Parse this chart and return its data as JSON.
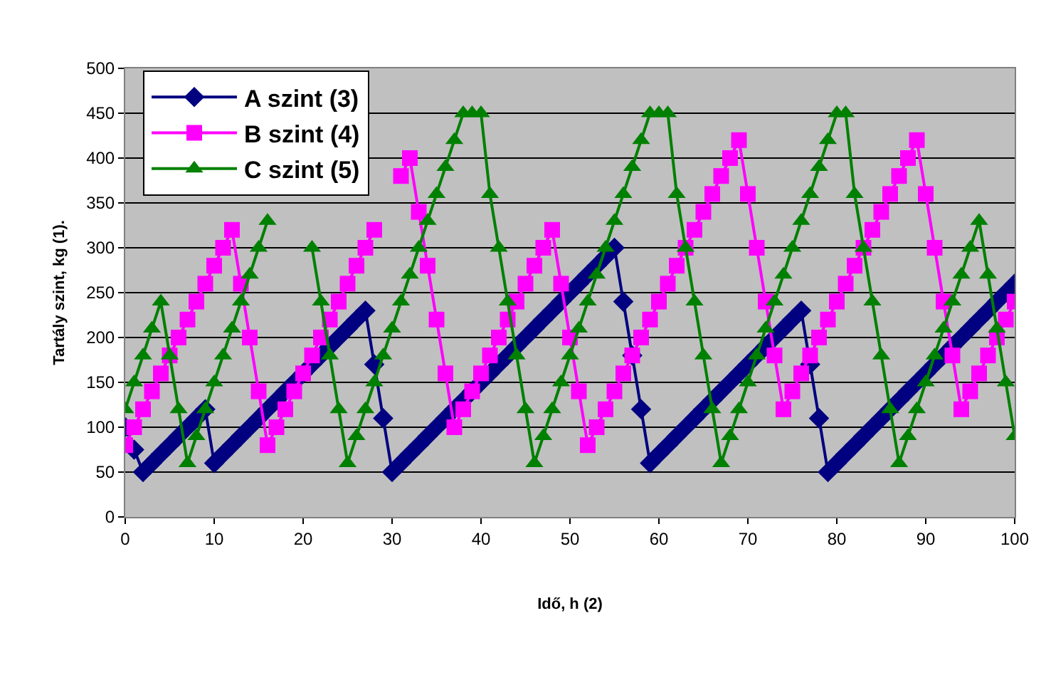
{
  "chart_data": {
    "type": "line",
    "xlabel": "Idő, h (2)",
    "ylabel": "Tartály szint, kg (1).",
    "x": [
      0,
      1,
      2,
      3,
      4,
      5,
      6,
      7,
      8,
      9,
      10,
      11,
      12,
      13,
      14,
      15,
      16,
      17,
      18,
      19,
      20,
      21,
      22,
      23,
      24,
      25,
      26,
      27,
      28,
      29,
      30,
      31,
      32,
      33,
      34,
      35,
      36,
      37,
      38,
      39,
      40,
      41,
      42,
      43,
      44,
      45,
      46,
      47,
      48,
      49,
      50,
      51,
      52,
      53,
      54,
      55,
      56,
      57,
      58,
      59,
      60,
      61,
      62,
      63,
      64,
      65,
      66,
      67,
      68,
      69,
      70,
      71,
      72,
      73,
      74,
      75,
      76,
      77,
      78,
      79,
      80,
      81,
      82,
      83,
      84,
      85,
      86,
      87,
      88,
      89,
      90,
      91,
      92,
      93,
      94,
      95,
      96,
      97,
      98,
      99,
      100
    ],
    "series": [
      {
        "name": "A szint (3)",
        "color": "#000080",
        "marker": "diamond",
        "values": [
          100,
          75,
          50,
          60,
          70,
          80,
          90,
          100,
          110,
          120,
          60,
          70,
          80,
          90,
          100,
          110,
          120,
          130,
          140,
          150,
          160,
          170,
          180,
          190,
          200,
          210,
          220,
          230,
          170,
          110,
          50,
          60,
          70,
          80,
          90,
          100,
          110,
          120,
          130,
          140,
          150,
          160,
          170,
          180,
          190,
          200,
          210,
          220,
          230,
          240,
          250,
          260,
          270,
          280,
          290,
          300,
          240,
          180,
          120,
          60,
          70,
          80,
          90,
          100,
          110,
          120,
          130,
          140,
          150,
          160,
          170,
          180,
          190,
          200,
          210,
          220,
          230,
          170,
          110,
          50,
          60,
          70,
          80,
          90,
          100,
          110,
          120,
          130,
          140,
          150,
          160,
          170,
          180,
          190,
          200,
          210,
          220,
          230,
          240,
          250,
          260
        ]
      },
      {
        "name": "B szint (4)",
        "color": "#ff00ff",
        "marker": "square",
        "values": [
          80,
          100,
          120,
          140,
          160,
          180,
          200,
          220,
          240,
          260,
          280,
          300,
          320,
          260,
          200,
          140,
          80,
          100,
          120,
          140,
          160,
          180,
          200,
          220,
          240,
          260,
          280,
          300,
          320,
          null,
          null,
          380,
          400,
          340,
          280,
          220,
          160,
          100,
          120,
          140,
          160,
          180,
          200,
          220,
          240,
          260,
          280,
          300,
          320,
          260,
          200,
          140,
          80,
          100,
          120,
          140,
          160,
          180,
          200,
          220,
          240,
          260,
          280,
          300,
          320,
          340,
          360,
          380,
          400,
          420,
          360,
          300,
          240,
          180,
          120,
          140,
          160,
          180,
          200,
          220,
          240,
          260,
          280,
          300,
          320,
          340,
          360,
          380,
          400,
          420,
          360,
          300,
          240,
          180,
          120,
          140,
          160,
          180,
          200,
          220,
          240
        ]
      },
      {
        "name": "C szint (5)",
        "color": "#008000",
        "marker": "triangle",
        "values": [
          120,
          150,
          180,
          210,
          240,
          180,
          120,
          60,
          90,
          120,
          150,
          180,
          210,
          240,
          270,
          300,
          330,
          null,
          null,
          null,
          null,
          300,
          240,
          180,
          120,
          60,
          90,
          120,
          150,
          180,
          210,
          240,
          270,
          300,
          330,
          360,
          390,
          420,
          450,
          450,
          450,
          360,
          300,
          240,
          180,
          120,
          60,
          90,
          120,
          150,
          180,
          210,
          240,
          270,
          300,
          330,
          360,
          390,
          420,
          450,
          450,
          450,
          360,
          300,
          240,
          180,
          120,
          60,
          90,
          120,
          150,
          180,
          210,
          240,
          270,
          300,
          330,
          360,
          390,
          420,
          450,
          450,
          360,
          300,
          240,
          180,
          120,
          60,
          90,
          120,
          150,
          180,
          210,
          240,
          270,
          300,
          330,
          270,
          210,
          150,
          90
        ]
      }
    ],
    "xlim": [
      0,
      100
    ],
    "xticks": [
      0,
      10,
      20,
      30,
      40,
      50,
      60,
      70,
      80,
      90,
      100
    ],
    "ylim": [
      0,
      500
    ],
    "yticks": [
      0,
      50,
      100,
      150,
      200,
      250,
      300,
      350,
      400,
      450,
      500
    ],
    "grid": "y",
    "legend": "top left",
    "line_style": "solid"
  }
}
